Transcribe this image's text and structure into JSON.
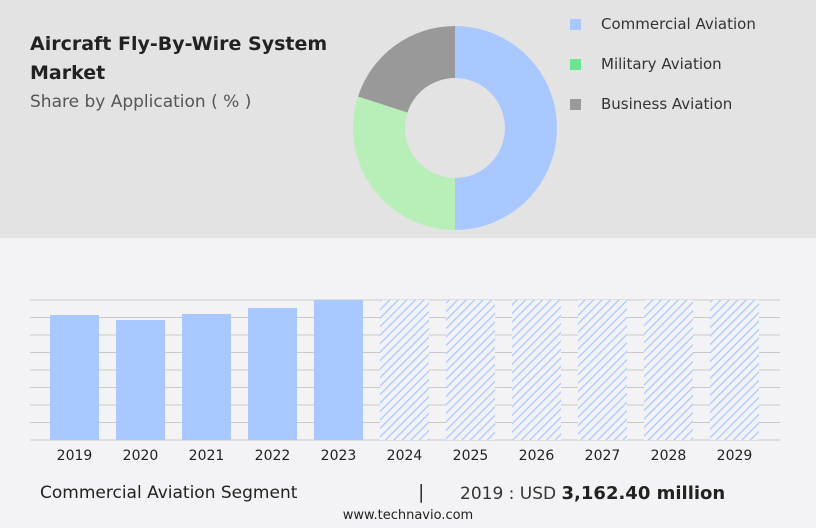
{
  "title": "Aircraft Fly-By-Wire System Market",
  "subtitle": "Share by Application ( % )",
  "chart_data": [
    {
      "type": "pie",
      "donut": true,
      "series": [
        {
          "name": "Commercial Aviation",
          "value": 50,
          "color": "#a8c8ff"
        },
        {
          "name": "Military Aviation",
          "value": 30,
          "color": "#b8eeb8"
        },
        {
          "name": "Business Aviation",
          "value": 20,
          "color": "#999999"
        }
      ],
      "legend_colors": [
        "#a8c8ff",
        "#6ee391",
        "#999999"
      ],
      "legend": "right"
    },
    {
      "type": "bar",
      "categories": [
        "2019",
        "2020",
        "2021",
        "2022",
        "2023",
        "2024",
        "2025",
        "2026",
        "2027",
        "2028",
        "2029"
      ],
      "values": [
        3162.4,
        3036,
        3188,
        3340,
        3542,
        null,
        null,
        null,
        null,
        null,
        null
      ],
      "forecast_hatched": [
        "2024",
        "2025",
        "2026",
        "2027",
        "2028",
        "2029"
      ],
      "color": "#a8c8ff",
      "grid": true,
      "ylim": [
        0,
        3542
      ]
    }
  ],
  "footer": {
    "segment": "Commercial Aviation Segment",
    "separator": "|",
    "year_label": "2019 : USD",
    "value": "3,162.40 million",
    "url": "www.technavio.com"
  }
}
